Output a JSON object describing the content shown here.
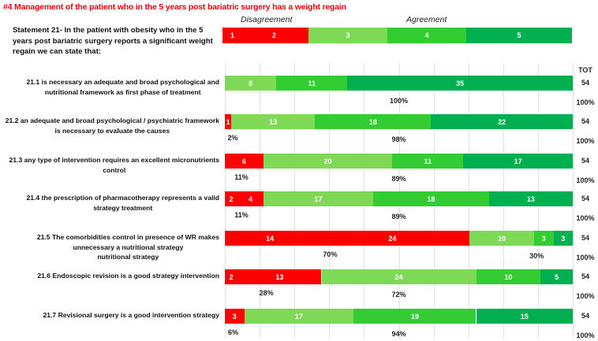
{
  "title": "#4 Management of the patient who in the 5 years post bariatric surgery has a weight regain",
  "statement": "Statement 21- In the patient with obesity who in the 5 years post bariatric surgery reports a significant weight regain we can state that:",
  "colors": {
    "s1": "#ff0000",
    "s2": "#ff0000",
    "s3": "#7ed957",
    "s4": "#33cc33",
    "s5": "#00b050",
    "title": "#e8000b"
  },
  "chart_data": {
    "type": "bar",
    "orientation": "horizontal-stacked",
    "scale_header": {
      "disagreement": "Disagreement",
      "agreement": "Agreement",
      "levels": [
        "1",
        "2",
        "3",
        "4",
        "5"
      ]
    },
    "tot_header": "TOT",
    "categories": [
      "21.1 is necessary an adequate and broad psychological and\nnutritional framework as first phase of treatment",
      "21.2 an adequate and broad psychological / psychiatric framework\nis necessary to evaluate the causes",
      "21.3 any type of intervention requires an excellent micronutrients\ncontrol",
      "21.4 the prescription of pharmacotherapy represents a valid\nstrategy treatment",
      "21.5 The comorbidities control in presence of WR makes\nunnecessary a nutritional strategy\nnutritional strategy",
      "21.6 Endoscopic revision is a good strategy intervention",
      "21.7 Revisional surgery is a good intervention strategy"
    ],
    "series": [
      {
        "name": "1",
        "values": [
          0,
          1,
          6,
          2,
          14,
          2,
          3
        ]
      },
      {
        "name": "2",
        "values": [
          0,
          0,
          0,
          4,
          24,
          13,
          0
        ]
      },
      {
        "name": "3",
        "values": [
          8,
          13,
          20,
          17,
          10,
          24,
          17
        ]
      },
      {
        "name": "4",
        "values": [
          11,
          18,
          11,
          18,
          3,
          10,
          19
        ]
      },
      {
        "name": "5",
        "values": [
          35,
          22,
          17,
          13,
          3,
          5,
          15
        ]
      }
    ],
    "totals": [
      "54",
      "54",
      "54",
      "54",
      "54",
      "54",
      "54"
    ],
    "total_pct": [
      "100%",
      "100%",
      "100%",
      "100%",
      "100%",
      "100%",
      "100%"
    ],
    "disagreement_pct": [
      "",
      "2%",
      "11%",
      "11%",
      "70%",
      "28%",
      "6%"
    ],
    "agreement_pct": [
      "100%",
      "98%",
      "89%",
      "89%",
      "30%",
      "72%",
      "94%"
    ],
    "xlim": [
      0,
      54
    ]
  }
}
